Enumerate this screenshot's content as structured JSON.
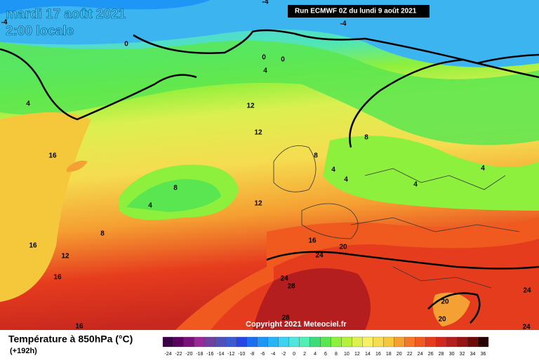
{
  "header": {
    "date": "mardi 17 août 2021",
    "time": "2:00 locale"
  },
  "run_info": "Run ECMWF 0Z du lundi 9 août 2021",
  "copyright": "Copyright 2021 Meteociel.fr",
  "legend": {
    "title": "Température à 850hPa (°C)",
    "subtitle": "(+192h)",
    "ticks": [
      "-24",
      "-22",
      "-20",
      "-18",
      "-16",
      "-14",
      "-12",
      "-10",
      "-8",
      "-6",
      "-4",
      "-2",
      "0",
      "2",
      "4",
      "6",
      "8",
      "10",
      "12",
      "14",
      "16",
      "18",
      "20",
      "22",
      "24",
      "26",
      "28",
      "30",
      "32",
      "34",
      "36"
    ],
    "colors": [
      "#3c0046",
      "#5a005e",
      "#7a107a",
      "#9a2896",
      "#7040a0",
      "#5050b8",
      "#3c5ad2",
      "#2846e6",
      "#1e6ef0",
      "#1e96f5",
      "#28b4f5",
      "#3cd2f0",
      "#50e6dc",
      "#50f0b4",
      "#3cdc78",
      "#5ae650",
      "#8cf03c",
      "#b4f03c",
      "#dcf050",
      "#f5f064",
      "#f5dc50",
      "#f5c83c",
      "#f5a032",
      "#f57828",
      "#f05a1e",
      "#e63c1e",
      "#d2281e",
      "#b41e1e",
      "#961414",
      "#6e0a0a",
      "#280000"
    ]
  },
  "contour_labels": [
    "-4",
    "-4",
    "-4",
    "0",
    "0",
    "0",
    "4",
    "4",
    "12",
    "12",
    "8",
    "16",
    "8",
    "4",
    "4",
    "4",
    "8",
    "4",
    "4",
    "12",
    "8",
    "16",
    "20",
    "16",
    "12",
    "24",
    "16",
    "24",
    "28",
    "20",
    "24",
    "28",
    "20",
    "24",
    "16"
  ]
}
